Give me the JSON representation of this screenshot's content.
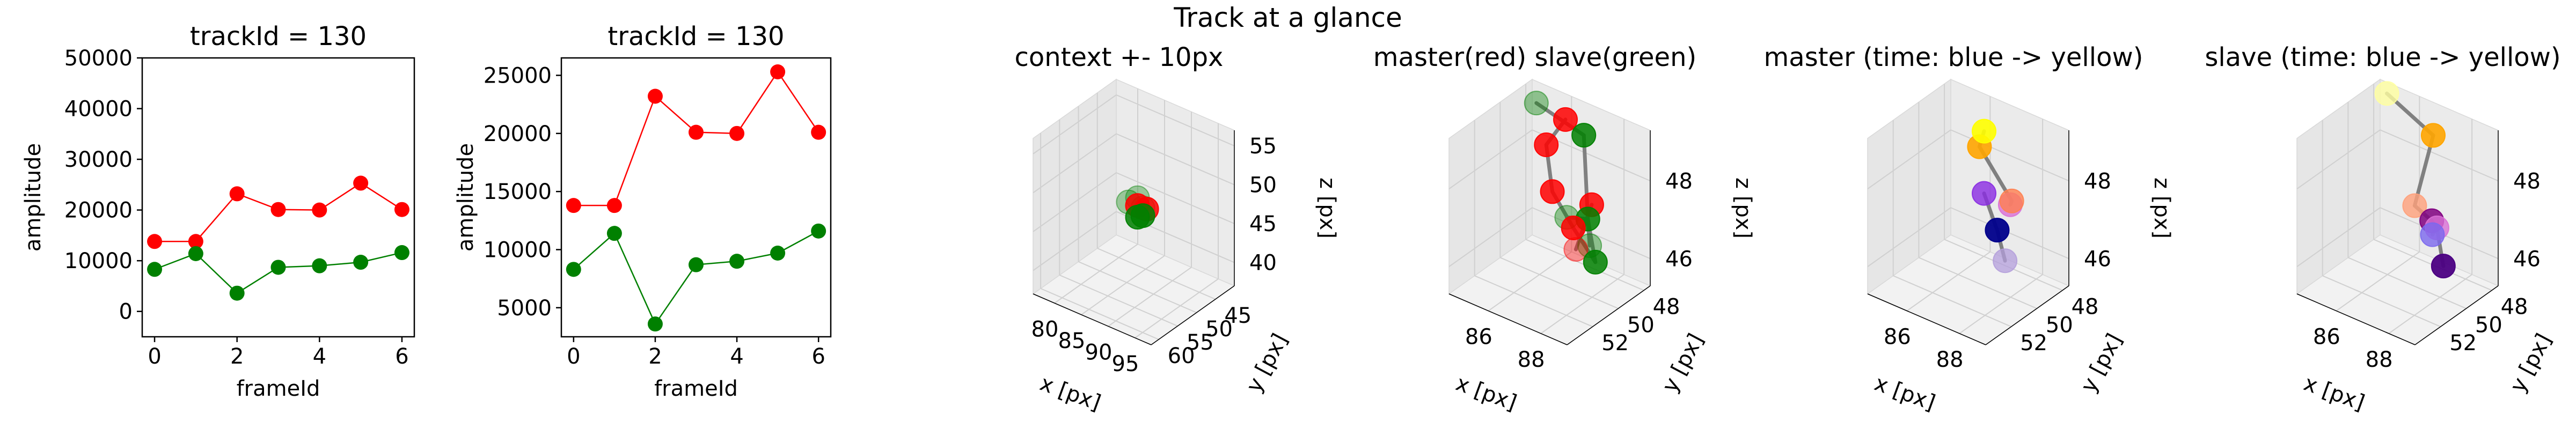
{
  "figure": {
    "suptitle": "Track at a glance"
  },
  "chart_data": [
    {
      "type": "line",
      "title": "trackId = 130",
      "xlabel": "frameId",
      "ylabel": "amplitude",
      "xlim": [
        -0.3,
        6.3
      ],
      "ylim": [
        -5000,
        50000
      ],
      "xticks": [
        0,
        2,
        4,
        6
      ],
      "yticks": [
        0,
        10000,
        20000,
        30000,
        40000,
        50000
      ],
      "grid": false,
      "series": [
        {
          "color": "#ff0000",
          "x": [
            0,
            1,
            2,
            3,
            4,
            5,
            6
          ],
          "y": [
            13800,
            13800,
            23200,
            20100,
            20000,
            25300,
            20100
          ]
        },
        {
          "color": "#008000",
          "x": [
            0,
            1,
            2,
            3,
            4,
            5,
            6
          ],
          "y": [
            8300,
            11400,
            3600,
            8700,
            9000,
            9700,
            11600
          ]
        }
      ]
    },
    {
      "type": "line",
      "title": "trackId = 130",
      "xlabel": "frameId",
      "ylabel": "amplitude",
      "xlim": [
        -0.3,
        6.3
      ],
      "ylim": [
        2500,
        26500
      ],
      "xticks": [
        0,
        2,
        4,
        6
      ],
      "yticks": [
        5000,
        10000,
        15000,
        20000,
        25000
      ],
      "grid": false,
      "series": [
        {
          "color": "#ff0000",
          "x": [
            0,
            1,
            2,
            3,
            4,
            5,
            6
          ],
          "y": [
            13800,
            13800,
            23200,
            20100,
            20000,
            25300,
            20100
          ]
        },
        {
          "color": "#008000",
          "x": [
            0,
            1,
            2,
            3,
            4,
            5,
            6
          ],
          "y": [
            8300,
            11400,
            3600,
            8700,
            9000,
            9700,
            11600
          ]
        }
      ]
    },
    {
      "type": "scatter",
      "projection": "3d",
      "title": "context +- 10px",
      "xlabel": "x [px]",
      "ylabel": "y [px]",
      "zlabel": "z [px]",
      "xlim": [
        76,
        98
      ],
      "ylim": [
        40,
        62
      ],
      "zlim": [
        37,
        57
      ],
      "xticks": [
        80,
        85,
        90,
        95
      ],
      "yticks": [
        45,
        50,
        55,
        60
      ],
      "zticks": [
        40,
        45,
        50,
        55
      ],
      "points": [
        {
          "x": 86,
          "y": 51,
          "z": 48,
          "color": "#008000",
          "alpha": 0.35
        },
        {
          "x": 88,
          "y": 50,
          "z": 47.5,
          "color": "#008000",
          "alpha": 0.35
        },
        {
          "x": 87,
          "y": 50,
          "z": 48.5,
          "color": "#008000",
          "alpha": 0.35
        },
        {
          "x": 87,
          "y": 50,
          "z": 47.5,
          "color": "#ff0000",
          "alpha": 0.85
        },
        {
          "x": 88,
          "y": 49,
          "z": 47,
          "color": "#ff0000",
          "alpha": 0.85
        },
        {
          "x": 88,
          "y": 50,
          "z": 46.5,
          "color": "#008000",
          "alpha": 0.85
        },
        {
          "x": 87,
          "y": 50,
          "z": 46,
          "color": "#008000",
          "alpha": 0.85
        }
      ],
      "lines": [
        {
          "from": [
            87,
            50,
            47.5
          ],
          "to": [
            88,
            50,
            46.5
          ],
          "color": "#808080"
        },
        {
          "from": [
            88,
            49,
            47
          ],
          "to": [
            87,
            50,
            46
          ],
          "color": "#808080"
        }
      ]
    },
    {
      "type": "scatter",
      "projection": "3d",
      "title": "master(red) slave(green)",
      "xlabel": "x [px]",
      "ylabel": "y [px]",
      "zlabel": "z [px]",
      "xlim": [
        84.5,
        89
      ],
      "ylim": [
        47.5,
        54
      ],
      "zlim": [
        45.3,
        49.3
      ],
      "xticks": [
        86,
        88
      ],
      "yticks": [
        48,
        50,
        52
      ],
      "zticks": [
        46,
        48
      ],
      "points": [
        {
          "x": 85,
          "y": 48.2,
          "z": 49,
          "color": "#008000",
          "alpha": 0.4,
          "label": "g1"
        },
        {
          "x": 86.5,
          "y": 49,
          "z": 49.2,
          "color": "#ff0000",
          "alpha": 0.85,
          "label": "r1"
        },
        {
          "x": 87.2,
          "y": 49,
          "z": 49,
          "color": "#008000",
          "alpha": 0.85,
          "label": "g2"
        },
        {
          "x": 86.5,
          "y": 50.5,
          "z": 48.9,
          "color": "#ff0000",
          "alpha": 0.85,
          "label": "r2"
        },
        {
          "x": 88.5,
          "y": 53,
          "z": 48.2,
          "color": "#008000",
          "alpha": 0.4,
          "label": "g3"
        },
        {
          "x": 86,
          "y": 49,
          "z": 47.2,
          "color": "#ff0000",
          "alpha": 0.85,
          "label": "r3"
        },
        {
          "x": 87.5,
          "y": 49,
          "z": 47.3,
          "color": "#ff0000",
          "alpha": 0.85,
          "label": "r4"
        },
        {
          "x": 87.5,
          "y": 49.3,
          "z": 47,
          "color": "#008000",
          "alpha": 0.85,
          "label": "g4"
        },
        {
          "x": 88.3,
          "y": 50.8,
          "z": 46.9,
          "color": "#008000",
          "alpha": 0.4,
          "label": "g5"
        },
        {
          "x": 86.8,
          "y": 49,
          "z": 46.5,
          "color": "#ff0000",
          "alpha": 0.85,
          "label": "r5"
        },
        {
          "x": 86.8,
          "y": 48.8,
          "z": 45.9,
          "color": "#ff0000",
          "alpha": 0.4,
          "label": "r6"
        },
        {
          "x": 87.3,
          "y": 48.3,
          "z": 45.6,
          "color": "#008000",
          "alpha": 0.85,
          "label": "g6"
        }
      ],
      "lines": [
        {
          "from": [
            85,
            48.2,
            49
          ],
          "to": [
            87.2,
            49,
            49
          ],
          "color": "#808080"
        },
        {
          "from": [
            87.2,
            49,
            49
          ],
          "to": [
            87.5,
            49.3,
            47
          ],
          "color": "#808080"
        },
        {
          "from": [
            87.5,
            49.3,
            47
          ],
          "to": [
            88.5,
            53,
            48.2
          ],
          "color": "#808080"
        },
        {
          "from": [
            87.5,
            49.3,
            47
          ],
          "to": [
            88.3,
            50.8,
            46.9
          ],
          "color": "#808080"
        },
        {
          "from": [
            87.5,
            49.3,
            47
          ],
          "to": [
            87.3,
            48.3,
            45.6
          ],
          "color": "#808080"
        },
        {
          "from": [
            86.5,
            49,
            49.2
          ],
          "to": [
            86.5,
            50.5,
            48.9
          ],
          "color": "#808080"
        },
        {
          "from": [
            86.5,
            50.5,
            48.9
          ],
          "to": [
            86,
            49,
            47.2
          ],
          "color": "#808080"
        },
        {
          "from": [
            86,
            49,
            47.2
          ],
          "to": [
            86.8,
            49,
            46.5
          ],
          "color": "#808080"
        },
        {
          "from": [
            86.8,
            49,
            46.5
          ],
          "to": [
            87.3,
            48.3,
            45.6
          ],
          "color": "#808080"
        },
        {
          "from": [
            87.5,
            49,
            47.3
          ],
          "to": [
            86.8,
            48.8,
            45.9
          ],
          "color": "#808080"
        }
      ]
    },
    {
      "type": "scatter",
      "projection": "3d",
      "title": "master (time: blue -> yellow)",
      "xlabel": "x [px]",
      "ylabel": "y [px]",
      "zlabel": "z [px]",
      "xlim": [
        84.5,
        89
      ],
      "ylim": [
        47.5,
        54
      ],
      "zlim": [
        45.3,
        49.3
      ],
      "xticks": [
        86,
        88
      ],
      "yticks": [
        48,
        50,
        52
      ],
      "zticks": [
        46,
        48
      ],
      "points": [
        {
          "x": 87,
          "y": 49,
          "z": 46.5,
          "color": "#00008b",
          "alpha": 0.95
        },
        {
          "x": 86.5,
          "y": 49,
          "z": 47.3,
          "color": "#8a2be2",
          "alpha": 0.8
        },
        {
          "x": 87.5,
          "y": 49,
          "z": 47.3,
          "color": "#da70d6",
          "alpha": 0.8
        },
        {
          "x": 87.8,
          "y": 49.5,
          "z": 47.6,
          "color": "#ff7f50",
          "alpha": 0.8
        },
        {
          "x": 87.3,
          "y": 51,
          "z": 49.2,
          "color": "#ffa500",
          "alpha": 0.9
        },
        {
          "x": 86.5,
          "y": 49,
          "z": 48.9,
          "color": "#ffff00",
          "alpha": 0.9
        },
        {
          "x": 87.3,
          "y": 49,
          "z": 45.8,
          "color": "#b39ddb",
          "alpha": 0.75
        }
      ],
      "lines": [
        {
          "from": [
            86.5,
            49,
            48.9
          ],
          "to": [
            87.3,
            51,
            49.2
          ],
          "color": "#808080"
        },
        {
          "from": [
            87.3,
            51,
            49.2
          ],
          "to": [
            87.8,
            49.5,
            47.6
          ],
          "color": "#808080"
        },
        {
          "from": [
            87.8,
            49.5,
            47.6
          ],
          "to": [
            87.5,
            49,
            47.3
          ],
          "color": "#808080"
        },
        {
          "from": [
            86.5,
            49,
            47.3
          ],
          "to": [
            87,
            49,
            46.5
          ],
          "color": "#808080"
        },
        {
          "from": [
            87,
            49,
            46.5
          ],
          "to": [
            87.3,
            49,
            45.8
          ],
          "color": "#808080"
        }
      ]
    },
    {
      "type": "scatter",
      "projection": "3d",
      "title": "slave (time: blue -> yellow)",
      "xlabel": "x [px]",
      "ylabel": "y [px]",
      "zlabel": "z [px]",
      "xlim": [
        84.5,
        89
      ],
      "ylim": [
        47.5,
        54
      ],
      "zlim": [
        45.3,
        49.3
      ],
      "xticks": [
        86,
        88
      ],
      "yticks": [
        48,
        50,
        52
      ],
      "zticks": [
        46,
        48
      ],
      "points": [
        {
          "x": 85,
          "y": 48,
          "z": 49.2,
          "color": "#ffffa0",
          "alpha": 0.8
        },
        {
          "x": 87.5,
          "y": 49.5,
          "z": 49.2,
          "color": "#ffa500",
          "alpha": 0.9
        },
        {
          "x": 88.5,
          "y": 53,
          "z": 48.5,
          "color": "#ffa07a",
          "alpha": 0.8
        },
        {
          "x": 87.2,
          "y": 49,
          "z": 46.8,
          "color": "#800080",
          "alpha": 0.85
        },
        {
          "x": 87.3,
          "y": 48.8,
          "z": 46.6,
          "color": "#da70d6",
          "alpha": 0.8
        },
        {
          "x": 88.2,
          "y": 51,
          "z": 47.2,
          "color": "#7b68ee",
          "alpha": 0.8
        },
        {
          "x": 87.3,
          "y": 48.3,
          "z": 45.5,
          "color": "#4b0082",
          "alpha": 0.95
        }
      ],
      "lines": [
        {
          "from": [
            85,
            48,
            49.2
          ],
          "to": [
            87.5,
            49.5,
            49.2
          ],
          "color": "#808080"
        },
        {
          "from": [
            87.5,
            49.5,
            49.2
          ],
          "to": [
            88.5,
            53,
            48.5
          ],
          "color": "#808080"
        },
        {
          "from": [
            88.5,
            53,
            48.5
          ],
          "to": [
            87.2,
            49,
            46.8
          ],
          "color": "#808080"
        },
        {
          "from": [
            87.2,
            49,
            46.8
          ],
          "to": [
            87.3,
            48.8,
            46.6
          ],
          "color": "#808080"
        },
        {
          "from": [
            87.3,
            48.8,
            46.6
          ],
          "to": [
            87.3,
            48.3,
            45.5
          ],
          "color": "#808080"
        },
        {
          "from": [
            87.3,
            48.8,
            46.6
          ],
          "to": [
            88.2,
            51,
            47.2
          ],
          "color": "#808080"
        }
      ]
    }
  ]
}
